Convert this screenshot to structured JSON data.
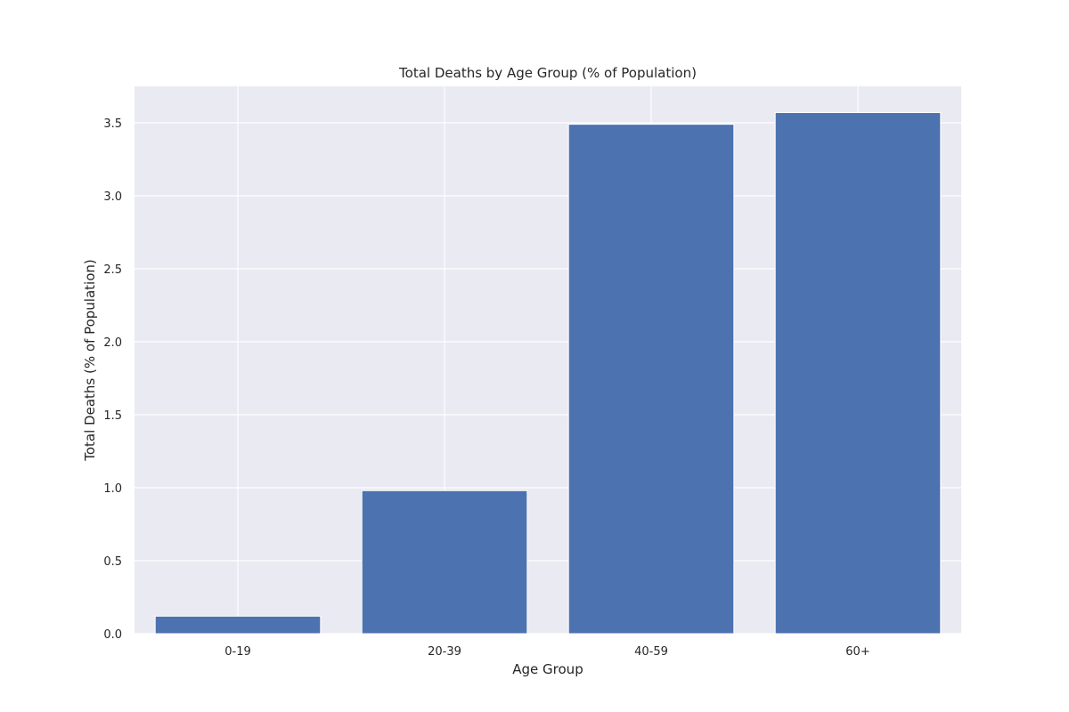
{
  "colors": {
    "plot_background": "#eaeaf2",
    "grid": "#ffffff",
    "bar": "#4c72b0",
    "text": "#262626"
  },
  "chart_data": {
    "type": "bar",
    "title": "Total Deaths by Age Group (% of Population)",
    "xlabel": "Age Group",
    "ylabel": "Total Deaths (% of Population)",
    "categories": [
      "0-19",
      "20-39",
      "40-59",
      "60+"
    ],
    "values": [
      0.12,
      0.98,
      3.49,
      3.57
    ],
    "ylim": [
      0,
      3.75
    ],
    "yticks": [
      0.0,
      0.5,
      1.0,
      1.5,
      2.0,
      2.5,
      3.0,
      3.5
    ],
    "ytick_labels": [
      "0.0",
      "0.5",
      "1.0",
      "1.5",
      "2.0",
      "2.5",
      "3.0",
      "3.5"
    ],
    "grid": true,
    "legend": "none"
  }
}
